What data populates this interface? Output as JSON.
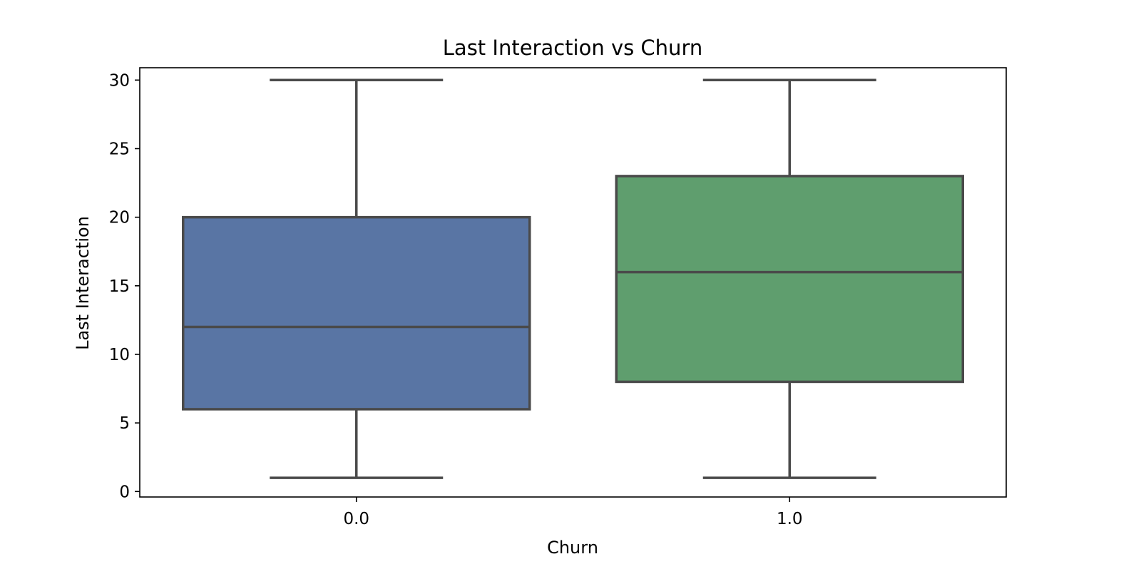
{
  "chart_data": {
    "type": "box",
    "title": "Last Interaction vs Churn",
    "xlabel": "Churn",
    "ylabel": "Last Interaction",
    "ylim": [
      -0.4,
      30.9
    ],
    "yticks": [
      0,
      5,
      10,
      15,
      20,
      25,
      30
    ],
    "grid": false,
    "legend": "none",
    "categories": [
      "0.0",
      "1.0"
    ],
    "boxes": [
      {
        "category": "0.0",
        "whislo": 1,
        "q1": 6,
        "med": 12,
        "q3": 20,
        "whishi": 30,
        "color": "#5975a4"
      },
      {
        "category": "1.0",
        "whislo": 1,
        "q1": 8,
        "med": 16,
        "q3": 23,
        "whishi": 30,
        "color": "#5f9e6e"
      }
    ],
    "line_color": "#4a4a4a"
  }
}
